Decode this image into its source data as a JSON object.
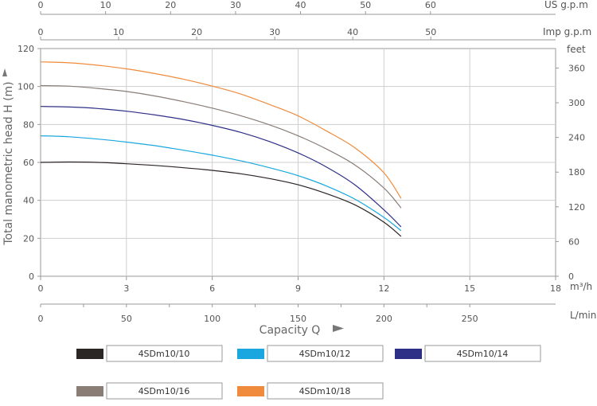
{
  "chart_data": {
    "type": "line",
    "xlabel": "Capacity  Q",
    "ylabel": "Total  manometric  head  H  (m)",
    "xlim": [
      0,
      18
    ],
    "ylim": [
      0,
      120
    ],
    "x_unit": "m³/h",
    "x_ticks": [
      0,
      3,
      6,
      9,
      12,
      15,
      18
    ],
    "y_ticks": [
      0,
      20,
      40,
      60,
      80,
      100,
      120
    ],
    "grid": true,
    "secondary_axes": {
      "us_gpm": {
        "unit": "US g.p.m",
        "ticks": [
          0,
          10,
          20,
          30,
          40,
          50,
          60
        ]
      },
      "imp_gpm": {
        "unit": "Imp g.p.m",
        "ticks": [
          0,
          10,
          20,
          30,
          40,
          50
        ]
      },
      "lpm": {
        "unit": "L/min",
        "ticks": [
          0,
          50,
          100,
          150,
          200,
          250
        ]
      },
      "feet": {
        "unit": "feet",
        "ticks": [
          0,
          60,
          120,
          180,
          240,
          300,
          360
        ]
      }
    },
    "series": [
      {
        "name": "4SDm10/10",
        "color": "#2b2523",
        "x": [
          0,
          1,
          2,
          3,
          4,
          5,
          6,
          7,
          8,
          9,
          10,
          11,
          12,
          12.6
        ],
        "y": [
          60,
          60.2,
          60,
          59.3,
          58.4,
          57.2,
          55.8,
          54,
          51.5,
          48.2,
          43.5,
          37.5,
          28.5,
          21
        ]
      },
      {
        "name": "4SDm10/12",
        "color": "#1aa7e0",
        "x": [
          0,
          1,
          2,
          3,
          4,
          5,
          6,
          7,
          8,
          9,
          10,
          11,
          12,
          12.6
        ],
        "y": [
          74,
          73.5,
          72.3,
          70.7,
          68.8,
          66.4,
          63.8,
          60.8,
          57.2,
          53,
          47.5,
          40.5,
          31,
          24
        ]
      },
      {
        "name": "4SDm10/14",
        "color": "#2e2f86",
        "x": [
          0,
          1,
          2,
          3,
          4,
          5,
          6,
          7,
          8,
          9,
          10,
          11,
          12,
          12.6
        ],
        "y": [
          89.5,
          89.2,
          88.4,
          87,
          85,
          82.6,
          79.5,
          75.8,
          71,
          65,
          57.5,
          48,
          35,
          26
        ]
      },
      {
        "name": "4SDm10/16",
        "color": "#8a7d76",
        "x": [
          0,
          1,
          2,
          3,
          4,
          5,
          6,
          7,
          8,
          9,
          10,
          11,
          12,
          12.6
        ],
        "y": [
          100.5,
          100.2,
          99,
          97.4,
          95,
          92,
          88.6,
          84.6,
          79.8,
          74,
          67,
          58.5,
          46.5,
          36
        ]
      },
      {
        "name": "4SDm10/18",
        "color": "#f08a3c",
        "x": [
          0,
          1,
          2,
          3,
          4,
          5,
          6,
          7,
          8,
          9,
          10,
          11,
          12,
          12.6
        ],
        "y": [
          113,
          112.5,
          111.2,
          109.3,
          106.8,
          103.8,
          100.2,
          96,
          90.5,
          84.5,
          76.5,
          67.5,
          54.5,
          41
        ]
      }
    ]
  }
}
